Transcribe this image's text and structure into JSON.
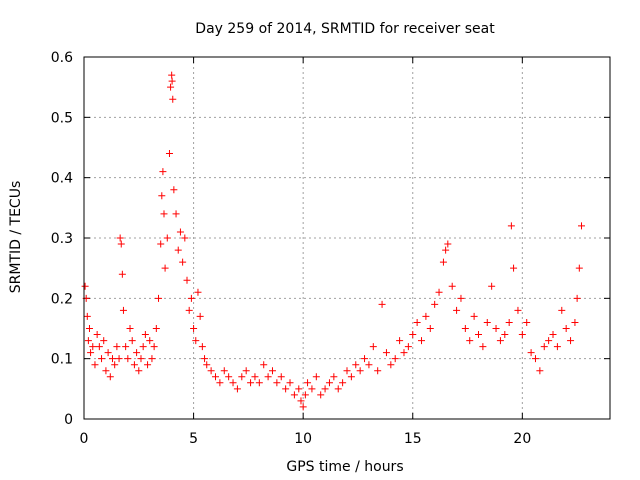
{
  "chart_data": {
    "type": "scatter",
    "title": "Day 259 of 2014, SRMTID for receiver seat",
    "xlabel": "GPS time / hours",
    "ylabel": "SRMTID / TECUs",
    "xlim": [
      0,
      24
    ],
    "ylim": [
      0,
      0.6
    ],
    "xticks": [
      0,
      5,
      10,
      15,
      20
    ],
    "xtick_labels": [
      "0",
      "5",
      "10",
      "15",
      "20"
    ],
    "yticks": [
      0,
      0.1,
      0.2,
      0.3,
      0.4,
      0.5,
      0.6
    ],
    "ytick_labels": [
      "0",
      "0.1",
      "0.2",
      "0.3",
      "0.4",
      "0.5",
      "0.6"
    ],
    "grid": true,
    "marker": "+",
    "series": [
      {
        "name": "SRMTID",
        "color": "#ff0000",
        "x": [
          0.05,
          0.1,
          0.15,
          0.2,
          0.25,
          0.3,
          0.4,
          0.5,
          0.6,
          0.7,
          0.8,
          0.9,
          1.0,
          1.1,
          1.2,
          1.3,
          1.4,
          1.5,
          1.6,
          1.65,
          1.7,
          1.75,
          1.8,
          1.9,
          2.0,
          2.1,
          2.2,
          2.3,
          2.4,
          2.5,
          2.6,
          2.7,
          2.8,
          2.9,
          3.0,
          3.1,
          3.2,
          3.3,
          3.4,
          3.5,
          3.55,
          3.6,
          3.65,
          3.7,
          3.8,
          3.9,
          3.95,
          4.0,
          4.02,
          4.05,
          4.1,
          4.2,
          4.3,
          4.4,
          4.5,
          4.6,
          4.7,
          4.8,
          4.9,
          5.0,
          5.1,
          5.2,
          5.3,
          5.4,
          5.5,
          5.6,
          5.8,
          6.0,
          6.2,
          6.4,
          6.6,
          6.8,
          7.0,
          7.2,
          7.4,
          7.6,
          7.8,
          8.0,
          8.2,
          8.4,
          8.6,
          8.8,
          9.0,
          9.2,
          9.4,
          9.6,
          9.8,
          9.9,
          10.0,
          10.1,
          10.2,
          10.4,
          10.6,
          10.8,
          11.0,
          11.2,
          11.4,
          11.6,
          11.8,
          12.0,
          12.2,
          12.4,
          12.6,
          12.8,
          13.0,
          13.2,
          13.4,
          13.6,
          13.8,
          14.0,
          14.2,
          14.4,
          14.6,
          14.8,
          15.0,
          15.2,
          15.4,
          15.6,
          15.8,
          16.0,
          16.2,
          16.4,
          16.5,
          16.6,
          16.8,
          17.0,
          17.2,
          17.4,
          17.6,
          17.8,
          18.0,
          18.2,
          18.4,
          18.6,
          18.8,
          19.0,
          19.2,
          19.4,
          19.5,
          19.6,
          19.8,
          20.0,
          20.2,
          20.4,
          20.6,
          20.8,
          21.0,
          21.2,
          21.4,
          21.6,
          21.8,
          22.0,
          22.2,
          22.4,
          22.5,
          22.6,
          22.7
        ],
        "y": [
          0.22,
          0.2,
          0.17,
          0.13,
          0.15,
          0.11,
          0.12,
          0.09,
          0.14,
          0.12,
          0.1,
          0.13,
          0.08,
          0.11,
          0.07,
          0.1,
          0.09,
          0.12,
          0.1,
          0.3,
          0.29,
          0.24,
          0.18,
          0.12,
          0.1,
          0.15,
          0.13,
          0.09,
          0.11,
          0.08,
          0.1,
          0.12,
          0.14,
          0.09,
          0.13,
          0.1,
          0.12,
          0.15,
          0.2,
          0.29,
          0.37,
          0.41,
          0.34,
          0.25,
          0.3,
          0.44,
          0.55,
          0.57,
          0.56,
          0.53,
          0.38,
          0.34,
          0.28,
          0.31,
          0.26,
          0.3,
          0.23,
          0.18,
          0.2,
          0.15,
          0.13,
          0.21,
          0.17,
          0.12,
          0.1,
          0.09,
          0.08,
          0.07,
          0.06,
          0.08,
          0.07,
          0.06,
          0.05,
          0.07,
          0.08,
          0.06,
          0.07,
          0.06,
          0.09,
          0.07,
          0.08,
          0.06,
          0.07,
          0.05,
          0.06,
          0.04,
          0.05,
          0.03,
          0.02,
          0.04,
          0.06,
          0.05,
          0.07,
          0.04,
          0.05,
          0.06,
          0.07,
          0.05,
          0.06,
          0.08,
          0.07,
          0.09,
          0.08,
          0.1,
          0.09,
          0.12,
          0.08,
          0.19,
          0.11,
          0.09,
          0.1,
          0.13,
          0.11,
          0.12,
          0.14,
          0.16,
          0.13,
          0.17,
          0.15,
          0.19,
          0.21,
          0.26,
          0.28,
          0.29,
          0.22,
          0.18,
          0.2,
          0.15,
          0.13,
          0.17,
          0.14,
          0.12,
          0.16,
          0.22,
          0.15,
          0.13,
          0.14,
          0.16,
          0.32,
          0.25,
          0.18,
          0.14,
          0.16,
          0.11,
          0.1,
          0.08,
          0.12,
          0.13,
          0.14,
          0.12,
          0.18,
          0.15,
          0.13,
          0.16,
          0.2,
          0.25,
          0.32
        ]
      }
    ]
  }
}
